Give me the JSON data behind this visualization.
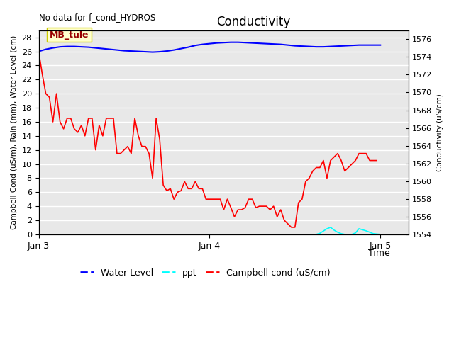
{
  "title": "Conductivity",
  "top_left_text": "No data for f_cond_HYDROS",
  "xlabel": "Time",
  "ylabel_left": "Campbell Cond (uS/m), Rain (mm), Water Level (cm)",
  "ylabel_right": "Conductivity (uS/cm)",
  "ylim_left": [
    0,
    29
  ],
  "ylim_right": [
    1554,
    1577
  ],
  "plot_bg_color": "#e8e8e8",
  "fig_bg_color": "#ffffff",
  "annotation_box_text": "MB_tule",
  "annotation_box_facecolor": "#ffffcc",
  "annotation_box_edgecolor": "#cccc00",
  "water_level_color": "#0000ff",
  "ppt_color": "#00ffff",
  "campbell_color": "#ff0000",
  "water_level_x": [
    0,
    1,
    2,
    3,
    4,
    5,
    6,
    7,
    8,
    9,
    10,
    11,
    12,
    13,
    14,
    15,
    16,
    17,
    18,
    19,
    20,
    21,
    22,
    23,
    24,
    25,
    26,
    27,
    28,
    29,
    30,
    31,
    32,
    33,
    34,
    35,
    36,
    37,
    38,
    39,
    40,
    41,
    42,
    43,
    44,
    45,
    46,
    47,
    48
  ],
  "water_level_y": [
    26.0,
    26.3,
    26.5,
    26.65,
    26.7,
    26.7,
    26.65,
    26.6,
    26.5,
    26.4,
    26.3,
    26.2,
    26.1,
    26.05,
    26.0,
    25.95,
    25.9,
    25.95,
    26.05,
    26.2,
    26.4,
    26.6,
    26.85,
    27.0,
    27.1,
    27.2,
    27.25,
    27.3,
    27.3,
    27.25,
    27.2,
    27.15,
    27.1,
    27.05,
    27.0,
    26.9,
    26.8,
    26.75,
    26.7,
    26.65,
    26.65,
    26.7,
    26.75,
    26.8,
    26.85,
    26.9,
    26.9,
    26.9,
    26.9
  ],
  "campbell_x": [
    0.0,
    0.5,
    1.0,
    1.5,
    2.0,
    2.5,
    3.0,
    3.5,
    4.0,
    4.5,
    5.0,
    5.5,
    6.0,
    6.5,
    7.0,
    7.5,
    8.0,
    8.5,
    9.0,
    9.5,
    10.0,
    10.5,
    11.0,
    11.5,
    12.0,
    12.5,
    13.0,
    13.5,
    14.0,
    14.5,
    15.0,
    15.5,
    16.0,
    16.5,
    17.0,
    17.5,
    18.0,
    18.5,
    19.0,
    19.5,
    20.0,
    20.5,
    21.0,
    21.5,
    22.0,
    22.5,
    23.0,
    23.5,
    24.0,
    24.5,
    25.0,
    25.5,
    26.0,
    26.5,
    27.0,
    27.5,
    28.0,
    28.5,
    29.0,
    29.5,
    30.0,
    30.5,
    31.0,
    31.5,
    32.0,
    32.5,
    33.0,
    33.5,
    34.0,
    34.5,
    35.0,
    35.5,
    36.0,
    36.5,
    37.0,
    37.5,
    38.0,
    38.5,
    39.0,
    39.5,
    40.0,
    40.5,
    41.0,
    41.5,
    42.0,
    42.5,
    43.0,
    43.5,
    44.0,
    44.5,
    45.0,
    45.5,
    46.0,
    46.5,
    47.0,
    47.5
  ],
  "campbell_y": [
    26.0,
    22.8,
    20.0,
    19.5,
    16.0,
    20.0,
    16.0,
    15.0,
    16.5,
    16.5,
    15.0,
    14.5,
    15.5,
    14.0,
    16.5,
    16.5,
    12.0,
    15.5,
    14.0,
    16.5,
    16.5,
    16.5,
    11.5,
    11.5,
    12.0,
    12.5,
    11.5,
    16.5,
    14.0,
    12.5,
    12.5,
    11.5,
    8.0,
    16.5,
    13.5,
    7.0,
    6.2,
    6.5,
    5.0,
    6.0,
    6.2,
    7.5,
    6.5,
    6.5,
    7.5,
    6.5,
    6.5,
    5.0,
    5.0,
    5.0,
    5.0,
    5.0,
    3.5,
    5.0,
    3.8,
    2.5,
    3.5,
    3.5,
    3.8,
    5.0,
    5.0,
    3.8,
    4.0,
    4.0,
    4.0,
    3.5,
    4.0,
    2.5,
    3.5,
    2.0,
    1.5,
    1.0,
    1.0,
    4.5,
    5.0,
    7.5,
    8.0,
    9.0,
    9.5,
    9.5,
    10.5,
    8.0,
    10.5,
    11.0,
    11.5,
    10.5,
    9.0,
    9.5,
    10.0,
    10.5,
    11.5,
    11.5,
    11.5,
    10.5,
    10.5,
    10.5
  ],
  "ppt_x": [
    0,
    5,
    10,
    15,
    20,
    24,
    28,
    32,
    34,
    35.5,
    36,
    38.5,
    39,
    39.5,
    40.5,
    41.0,
    41.5,
    42.0,
    42.5,
    43.0,
    43.5,
    44.0,
    44.5,
    45.0,
    46.0,
    47.0,
    48
  ],
  "ppt_y": [
    0,
    0,
    0,
    0,
    0,
    0,
    0,
    0,
    0,
    0,
    0,
    0,
    0,
    0.15,
    0.8,
    1.0,
    0.6,
    0.3,
    0.1,
    0,
    0,
    0,
    0.2,
    0.8,
    0.5,
    0.1,
    0
  ],
  "x_ticks": [
    0,
    24,
    48
  ],
  "x_tick_labels": [
    "Jan 3",
    "Jan 4",
    "Jan 5"
  ],
  "x_range": [
    0,
    52
  ],
  "yticks_left": [
    0,
    2,
    4,
    6,
    8,
    10,
    12,
    14,
    16,
    18,
    20,
    22,
    24,
    26,
    28
  ],
  "yticks_right": [
    1554,
    1556,
    1558,
    1560,
    1562,
    1564,
    1566,
    1568,
    1570,
    1572,
    1574,
    1576
  ],
  "legend_labels": [
    "Water Level",
    "ppt",
    "Campbell cond (uS/cm)"
  ],
  "legend_colors": [
    "#0000ff",
    "#00ffff",
    "#ff0000"
  ]
}
